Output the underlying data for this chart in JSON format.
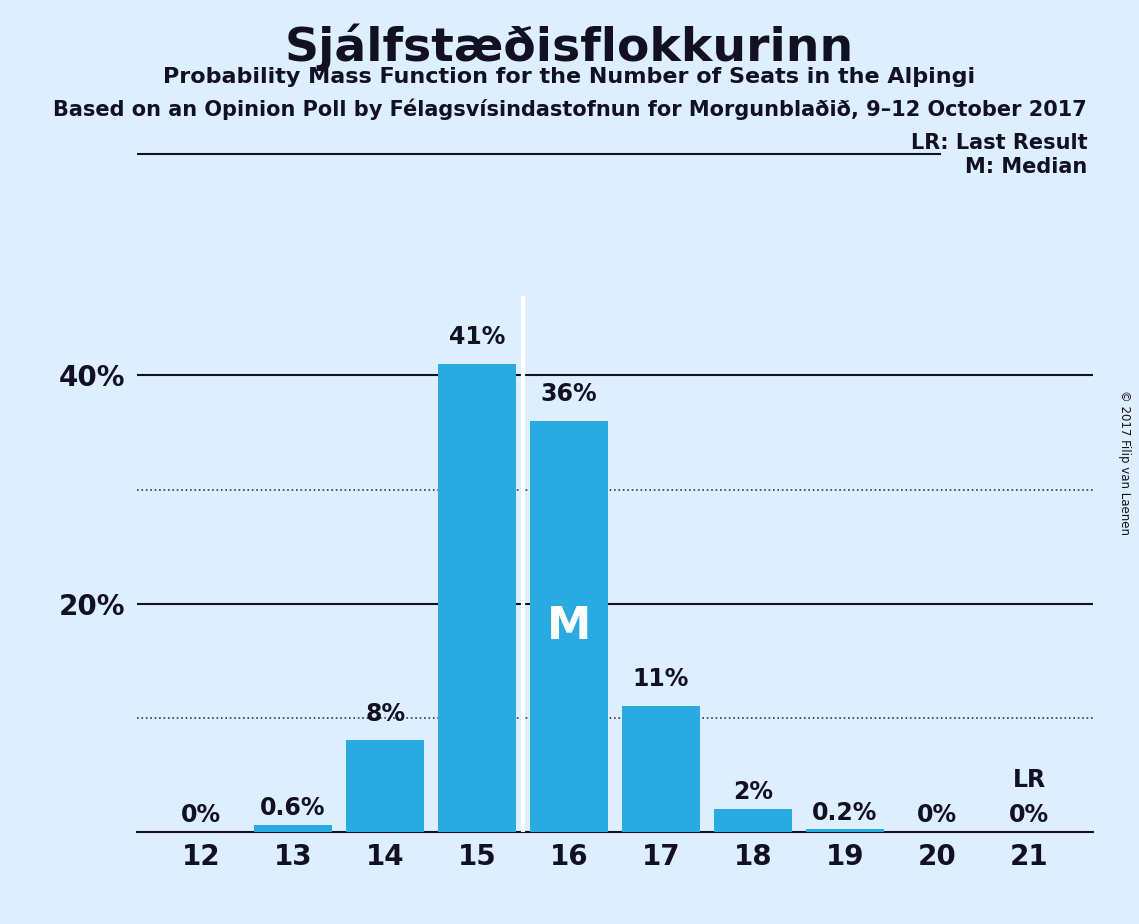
{
  "title": "Sjálfstæðisflokkurinn",
  "subtitle1": "Probability Mass Function for the Number of Seats in the Alþingi",
  "subtitle2": "Based on an Opinion Poll by Félagsvísindastofnun for Morgunblaðið, 9–12 October 2017",
  "copyright": "© 2017 Filip van Laenen",
  "categories": [
    12,
    13,
    14,
    15,
    16,
    17,
    18,
    19,
    20,
    21
  ],
  "values": [
    0.0,
    0.6,
    8.0,
    41.0,
    36.0,
    11.0,
    2.0,
    0.2,
    0.0,
    0.0
  ],
  "labels": [
    "0%",
    "0.6%",
    "8%",
    "41%",
    "36%",
    "11%",
    "2%",
    "0.2%",
    "0%",
    "0%"
  ],
  "bar_color": "#29ABE2",
  "background_color": "#DDEEFF",
  "text_color": "#111122",
  "median_seat": 16,
  "lr_seat": 21,
  "lr_label": "LR",
  "median_label": "M",
  "legend_lr": "LR: Last Result",
  "legend_m": "M: Median",
  "ylim": [
    0,
    47
  ],
  "yticks_labeled": [
    20,
    40
  ],
  "yticks_dotted": [
    10,
    30
  ],
  "yticks_solid": [
    20,
    40
  ],
  "bar_width": 0.85
}
